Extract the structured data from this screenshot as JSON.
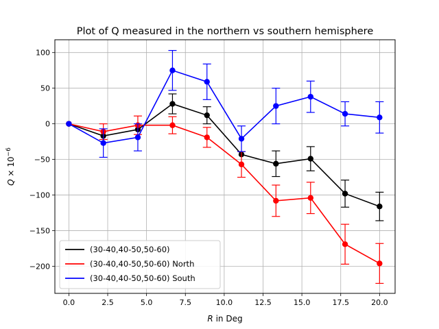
{
  "chart_data": {
    "type": "line",
    "title": "Plot of Q measured in the northern vs southern hemisphere",
    "xlabel_var": "R",
    "xlabel_rest": " in Deg",
    "ylabel_var": "Q",
    "ylabel_rest": " × 10",
    "ylabel_exp": "−6",
    "xlim": [
      -0.9,
      21.0
    ],
    "ylim": [
      -238,
      118
    ],
    "xticks": [
      0.0,
      2.5,
      5.0,
      7.5,
      10.0,
      12.5,
      15.0,
      17.5,
      20.0
    ],
    "xtick_labels": [
      "0.0",
      "2.5",
      "5.0",
      "7.5",
      "10.0",
      "12.5",
      "15.0",
      "17.5",
      "20.0"
    ],
    "yticks": [
      100,
      50,
      0,
      -50,
      -100,
      -150,
      -200
    ],
    "ytick_labels": [
      "100",
      "50",
      "0",
      "−50",
      "−100",
      "−150",
      "−200"
    ],
    "grid": true,
    "legend_position": "lower-left",
    "x": [
      0.0,
      2.22,
      4.44,
      6.67,
      8.89,
      11.11,
      13.33,
      15.56,
      17.78,
      20.0
    ],
    "series": [
      {
        "name": "(30-40,40-50,50-60)",
        "color": "#000000",
        "values": [
          0,
          -17,
          -8,
          28,
          12,
          -43,
          -56,
          -49,
          -98,
          -116
        ],
        "errors": [
          0,
          0,
          0,
          14,
          12,
          0,
          18,
          17,
          19,
          20
        ]
      },
      {
        "name": "(30-40,40-50,50-60) North",
        "color": "#ff0000",
        "values": [
          0,
          -11,
          -2,
          -2,
          -19,
          -57,
          -108,
          -104,
          -169,
          -196
        ],
        "errors": [
          0,
          11,
          13,
          12,
          14,
          18,
          22,
          22,
          28,
          28
        ]
      },
      {
        "name": "(30-40,40-50,50-60) South",
        "color": "#0000ff",
        "values": [
          0,
          -27,
          -19,
          75,
          59,
          -21,
          25,
          38,
          14,
          9
        ],
        "errors": [
          0,
          20,
          19,
          28,
          25,
          18,
          25,
          22,
          17,
          22
        ]
      }
    ]
  }
}
